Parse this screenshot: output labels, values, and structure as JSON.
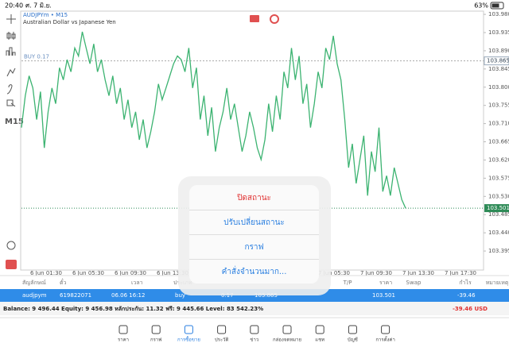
{
  "status_bar": {
    "time": "20:40",
    "date": "ศ. 7 มิ.ย.",
    "battery": "63%"
  },
  "chart_data": {
    "type": "line",
    "symbol": "AUDJPYm • M15",
    "description": "Australian Dollar vs Japanese Yen",
    "timeframe": "M15",
    "order_label": "BUY 0.17",
    "color": "#3cb371",
    "values": [
      103.7,
      103.779,
      103.828,
      103.798,
      103.72,
      103.789,
      103.65,
      103.739,
      103.798,
      103.759,
      103.848,
      103.818,
      103.868,
      103.838,
      103.897,
      103.877,
      103.937,
      103.897,
      103.858,
      103.907,
      103.838,
      103.868,
      103.818,
      103.779,
      103.828,
      103.759,
      103.798,
      103.72,
      103.769,
      103.7,
      103.739,
      103.67,
      103.72,
      103.65,
      103.69,
      103.739,
      103.808,
      103.769,
      103.798,
      103.828,
      103.858,
      103.877,
      103.868,
      103.838,
      103.897,
      103.798,
      103.848,
      103.72,
      103.779,
      103.68,
      103.75,
      103.641,
      103.7,
      103.739,
      103.798,
      103.72,
      103.759,
      103.7,
      103.641,
      103.68,
      103.739,
      103.7,
      103.65,
      103.621,
      103.67,
      103.759,
      103.69,
      103.779,
      103.72,
      103.838,
      103.798,
      103.897,
      103.818,
      103.877,
      103.759,
      103.808,
      103.7,
      103.759,
      103.838,
      103.798,
      103.897,
      103.868,
      103.927,
      103.858,
      103.818,
      103.72,
      103.601,
      103.66,
      103.562,
      103.621,
      103.68,
      103.532,
      103.641,
      103.591,
      103.7,
      103.542,
      103.581,
      103.532,
      103.601,
      103.562,
      103.522,
      103.501
    ],
    "ylim": [
      103.348,
      103.988
    ],
    "yticks": [
      {
        "value": 103.98,
        "label": "103.980"
      },
      103.935,
      {
        "value": 103.89,
        "label": "103.890"
      },
      103.845,
      {
        "value": 103.8,
        "label": "103.800"
      },
      103.755,
      {
        "value": 103.71,
        "label": "103.710"
      },
      103.665,
      {
        "value": 103.62,
        "label": "103.620"
      },
      103.575,
      {
        "value": 103.53,
        "label": "103.530"
      },
      103.485,
      {
        "value": 103.44,
        "label": "103.440"
      },
      103.395
    ],
    "order_price": 103.865,
    "bid_price": 103.501,
    "xtick_labels": [
      "6 Jun 01:30",
      "6 Jun 05:30",
      "6 Jun 09:30",
      "6 Jun 13:30",
      "7 Jun 05:30",
      "7 Jun 09:30",
      "7 Jun 13:30",
      "7 Jun 17:30"
    ]
  },
  "menu": {
    "items": [
      "ปิดสถานะ",
      "ปรับเปลี่ยนสถานะ",
      "กราฟ",
      "คำสั่งจำนวนมาก..."
    ]
  },
  "table": {
    "headers": [
      "สัญลักษณ์",
      "ตั๋ว",
      "เวลา",
      "ประเภท",
      "T/P",
      "ราคา",
      "Swap",
      "กำไร",
      "หมายเหตุ"
    ],
    "rows": [
      [
        "audjpym",
        "619822071",
        "06.06 16:12",
        "buy",
        "0.17",
        "103.865",
        "103.501",
        "-39.46"
      ]
    ]
  },
  "summary": {
    "text": "Balance: 9 496.44 Equity: 9 456.98 หลักประกัน: 11.32 ฟรี: 9 445.66 Level: 83 542.23%",
    "total": "-39.46  USD"
  },
  "tabs": [
    "ราคา",
    "กราฟ",
    "การซื้อขาย",
    "ประวัติ",
    "ข่าว",
    "กล่องจดหมาย",
    "แชท",
    "บัญชี",
    "การตั้งค่า"
  ]
}
